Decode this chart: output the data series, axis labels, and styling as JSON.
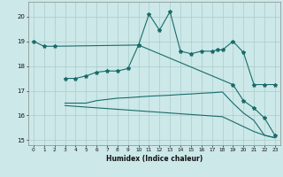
{
  "title": "",
  "xlabel": "Humidex (Indice chaleur)",
  "bg_color": "#cce8e8",
  "grid_color": "#aacccc",
  "line_color": "#1a6b6b",
  "xlim": [
    -0.5,
    23.5
  ],
  "ylim": [
    14.8,
    20.6
  ],
  "yticks": [
    15,
    16,
    17,
    18,
    19,
    20
  ],
  "xticks": [
    0,
    1,
    2,
    3,
    4,
    5,
    6,
    7,
    8,
    9,
    10,
    11,
    12,
    13,
    14,
    15,
    16,
    17,
    18,
    19,
    20,
    21,
    22,
    23
  ],
  "lines": [
    {
      "x": [
        0,
        1,
        2,
        10,
        11,
        12,
        13,
        14,
        15,
        16,
        17,
        17.5,
        18,
        19,
        20,
        21,
        22,
        23
      ],
      "y": [
        19.0,
        18.8,
        18.8,
        18.85,
        20.1,
        19.45,
        20.2,
        18.6,
        18.5,
        18.6,
        18.6,
        18.65,
        18.65,
        19.0,
        18.55,
        17.25,
        17.25,
        17.25
      ],
      "marker": true
    },
    {
      "x": [
        3,
        4,
        5,
        6,
        7,
        8,
        9,
        10,
        19,
        20,
        21,
        22,
        23
      ],
      "y": [
        17.5,
        17.5,
        17.6,
        17.75,
        17.8,
        17.8,
        17.9,
        18.85,
        17.25,
        16.6,
        16.3,
        15.9,
        15.2
      ],
      "marker": true
    },
    {
      "x": [
        3,
        4,
        5,
        6,
        7,
        8,
        9,
        10,
        11,
        12,
        13,
        14,
        15,
        16,
        17,
        18,
        19,
        20,
        21,
        22,
        23
      ],
      "y": [
        16.5,
        16.5,
        16.5,
        16.6,
        16.65,
        16.7,
        16.72,
        16.75,
        16.78,
        16.8,
        16.82,
        16.85,
        16.87,
        16.9,
        16.92,
        16.95,
        16.5,
        16.1,
        15.8,
        15.2,
        15.1
      ],
      "marker": false
    },
    {
      "x": [
        3,
        4,
        5,
        6,
        7,
        8,
        9,
        10,
        11,
        12,
        13,
        14,
        15,
        16,
        17,
        18,
        19,
        20,
        21,
        22,
        23
      ],
      "y": [
        16.4,
        16.37,
        16.34,
        16.31,
        16.28,
        16.25,
        16.22,
        16.19,
        16.16,
        16.13,
        16.1,
        16.07,
        16.04,
        16.01,
        15.98,
        15.95,
        15.75,
        15.55,
        15.35,
        15.2,
        15.1
      ],
      "marker": false
    }
  ]
}
